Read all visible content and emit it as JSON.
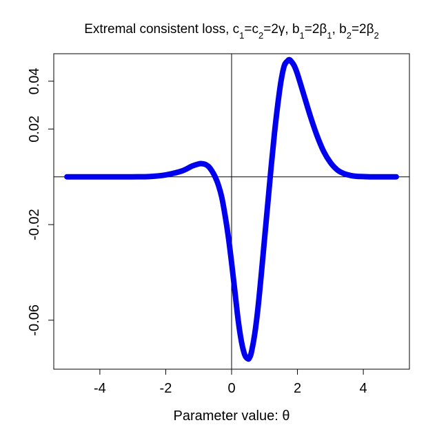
{
  "chart_data": {
    "type": "line",
    "title_parts": [
      {
        "t": "Extremal consistent loss, c"
      },
      {
        "t": "1",
        "sub": true
      },
      {
        "t": "=c"
      },
      {
        "t": "2",
        "sub": true
      },
      {
        "t": "=2γ, b"
      },
      {
        "t": "1",
        "sub": true
      },
      {
        "t": "=2β"
      },
      {
        "t": "1",
        "sub": true
      },
      {
        "t": ", b"
      },
      {
        "t": "2",
        "sub": true
      },
      {
        "t": "=2β"
      },
      {
        "t": "2",
        "sub": true
      }
    ],
    "xlabel": "Parameter value: θ",
    "ylabel": "",
    "xlim": [
      -5.4,
      5.4
    ],
    "ylim": [
      -0.0805,
      0.0515
    ],
    "x_ticks": [
      -4,
      -2,
      0,
      2,
      4
    ],
    "x_tick_labels": [
      "-4",
      "-2",
      "0",
      "2",
      "4"
    ],
    "y_ticks": [
      0.04,
      0.02,
      -0.02,
      -0.06
    ],
    "y_tick_labels": [
      "0.04",
      "0.02",
      "-0.02",
      "-0.06"
    ],
    "reference_lines": {
      "x": 0,
      "y": 0
    },
    "grid": false,
    "series": [
      {
        "color": "#0000ee",
        "x": [
          -5.0,
          -4.0,
          -3.0,
          -2.5,
          -2.0,
          -1.5,
          -1.2,
          -1.0,
          -0.9,
          -0.8,
          -0.7,
          -0.6,
          -0.5,
          -0.4,
          -0.3,
          -0.2,
          -0.1,
          0.0,
          0.1,
          0.2,
          0.3,
          0.4,
          0.5,
          0.55,
          0.6,
          0.7,
          0.8,
          0.9,
          1.0,
          1.1,
          1.2,
          1.3,
          1.4,
          1.5,
          1.6,
          1.7,
          1.75,
          1.8,
          1.9,
          2.0,
          2.2,
          2.4,
          2.6,
          2.8,
          3.0,
          3.2,
          3.4,
          3.6,
          3.8,
          4.0,
          4.2,
          4.5,
          5.0
        ],
        "y": [
          0.0,
          0.0,
          0.0,
          0.0001,
          0.0008,
          0.0025,
          0.0045,
          0.0054,
          0.0055,
          0.0052,
          0.0043,
          0.0025,
          0.0,
          -0.0035,
          -0.0085,
          -0.016,
          -0.025,
          -0.036,
          -0.048,
          -0.06,
          -0.069,
          -0.0745,
          -0.0762,
          -0.0755,
          -0.0735,
          -0.066,
          -0.055,
          -0.041,
          -0.026,
          -0.011,
          0.004,
          0.018,
          0.03,
          0.04,
          0.0465,
          0.0485,
          0.049,
          0.0485,
          0.0465,
          0.043,
          0.034,
          0.025,
          0.017,
          0.0105,
          0.006,
          0.003,
          0.0014,
          0.0006,
          0.0002,
          0.0001,
          0.0,
          0.0,
          0.0
        ]
      }
    ]
  }
}
